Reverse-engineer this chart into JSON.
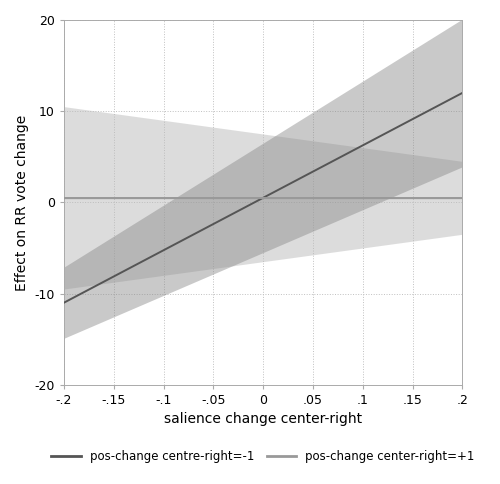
{
  "x_min": -0.2,
  "x_max": 0.2,
  "y_min": -20,
  "y_max": 20,
  "xticks": [
    -0.2,
    -0.15,
    -0.1,
    -0.05,
    0.0,
    0.05,
    0.1,
    0.15,
    0.2
  ],
  "xtick_labels": [
    "-.2",
    "-.15",
    "-.1",
    "-.05",
    "0",
    ".05",
    ".1",
    ".15",
    ".2"
  ],
  "yticks": [
    -20,
    -10,
    0,
    10,
    20
  ],
  "xlabel": "salience change center-right",
  "ylabel": "Effect on RR vote change",
  "line1": {
    "label": "pos-change centre-right=-1",
    "slope": 57.5,
    "intercept": 0.5,
    "color": "#555555",
    "linewidth": 1.4
  },
  "line2": {
    "label": "pos-change center-right=+1",
    "slope": 0.0,
    "intercept": 0.5,
    "color": "#999999",
    "linewidth": 1.4
  },
  "ci1_upper_slope": 68.0,
  "ci1_upper_intercept": 6.5,
  "ci1_lower_slope": 47.0,
  "ci1_lower_intercept": -5.5,
  "ci1_color": "#888888",
  "ci1_alpha": 0.45,
  "ci2_upper_slope": -15.0,
  "ci2_upper_intercept": 7.5,
  "ci2_lower_slope": 15.0,
  "ci2_lower_intercept": -6.5,
  "ci2_color": "#bbbbbb",
  "ci2_alpha": 0.5,
  "hline_y": 0.5,
  "hline_color": "#999999",
  "hline_linewidth": 0.9,
  "background_color": "#ffffff",
  "grid_color": "#c0c0c0",
  "grid_linestyle": ":",
  "grid_linewidth": 0.7,
  "legend_line_colors": [
    "#555555",
    "#999999"
  ],
  "legend_labels": [
    "pos-change centre-right=-1",
    "pos-change center-right=+1"
  ],
  "figsize": [
    5.0,
    4.84
  ],
  "dpi": 100
}
